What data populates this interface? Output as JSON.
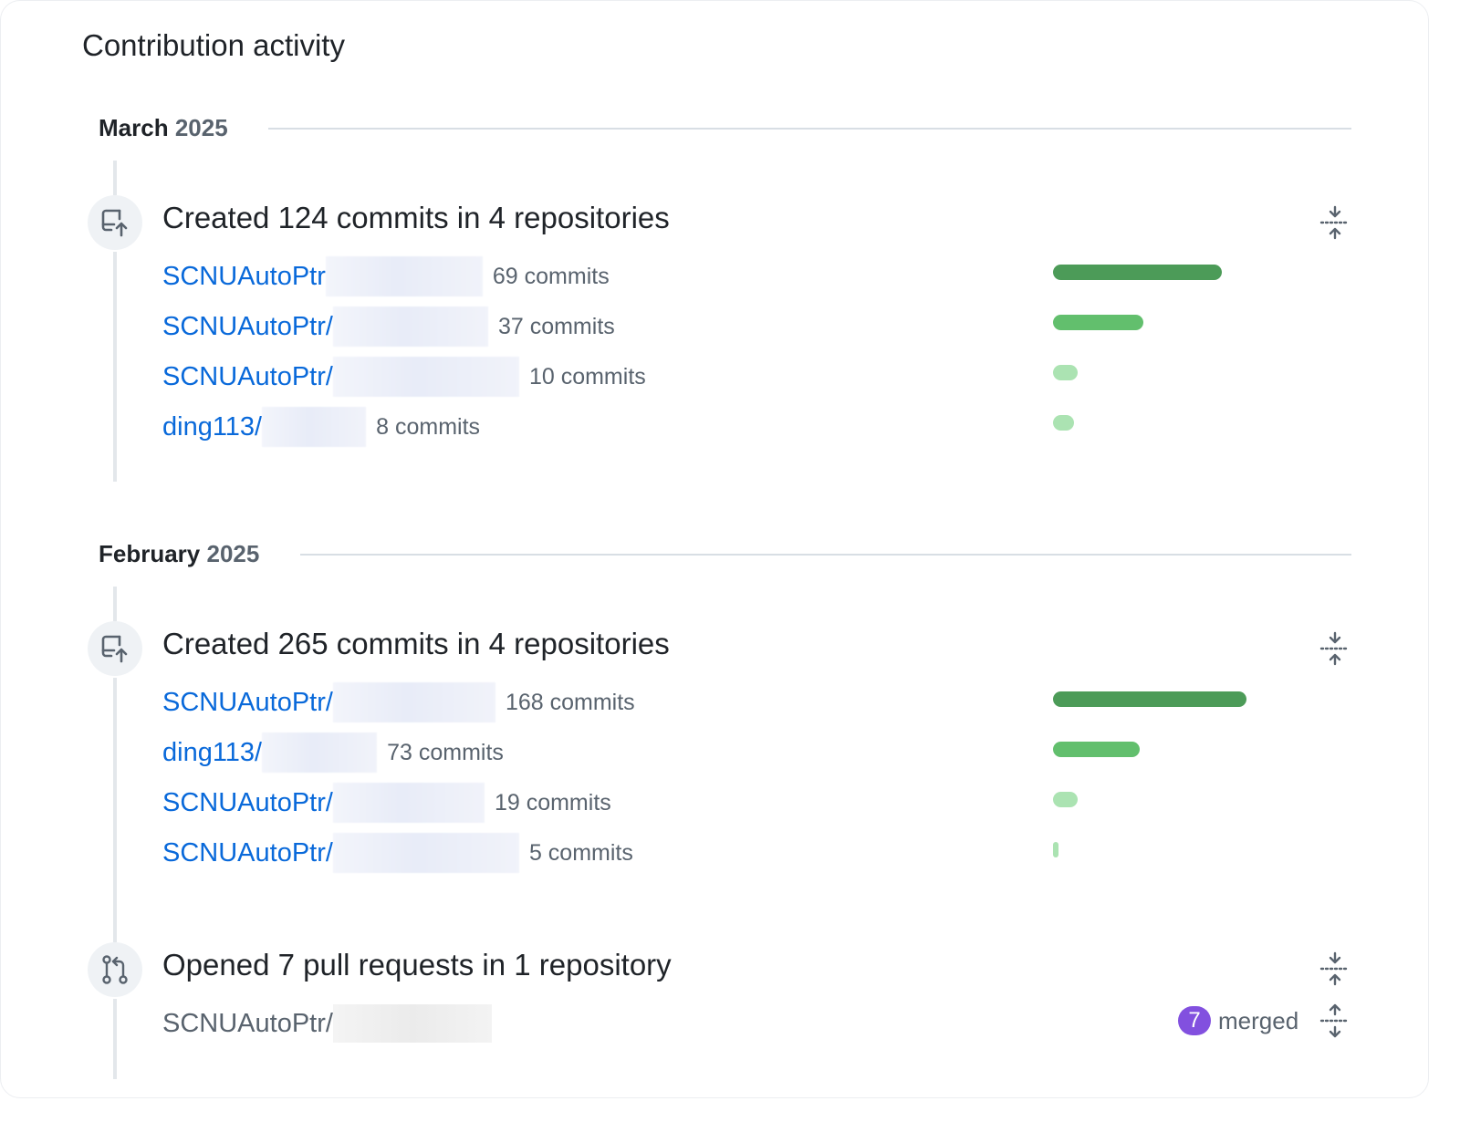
{
  "title": "Contribution activity",
  "colors": {
    "link": "#0969da",
    "bar_dark": "#4c9b58",
    "bar_mid": "#62bf6d",
    "bar_light": "#abe3b2",
    "merged": "#8250df"
  },
  "months": [
    {
      "name": "March",
      "year": "2025",
      "groups": [
        {
          "icon": "repo-push-icon",
          "title": "Created 124 commits in 4 repositories",
          "repos": [
            {
              "name": "SCNUAutoPtr",
              "count": "69 commits",
              "share": 0.41
            },
            {
              "name": "SCNUAutoPtr/",
              "count": "37 commits",
              "share": 0.22
            },
            {
              "name": "SCNUAutoPtr/",
              "count": "10 commits",
              "share": 0.06
            },
            {
              "name": "ding113/",
              "count": "8 commits",
              "share": 0.05
            }
          ]
        }
      ]
    },
    {
      "name": "February",
      "year": "2025",
      "groups": [
        {
          "icon": "repo-push-icon",
          "title": "Created 265 commits in 4 repositories",
          "repos": [
            {
              "name": "SCNUAutoPtr/",
              "count": "168 commits",
              "share": 0.47
            },
            {
              "name": "ding113/",
              "count": "73 commits",
              "share": 0.21
            },
            {
              "name": "SCNUAutoPtr/",
              "count": "19 commits",
              "share": 0.06
            },
            {
              "name": "SCNUAutoPtr/",
              "count": "5 commits",
              "share": 0.01
            }
          ]
        },
        {
          "icon": "git-pull-request-icon",
          "title": "Opened 7 pull requests in 1 repository",
          "repos": [
            {
              "name": "SCNUAutoPtr/",
              "merged_count": "7",
              "merged_label": "merged"
            }
          ]
        }
      ]
    }
  ]
}
